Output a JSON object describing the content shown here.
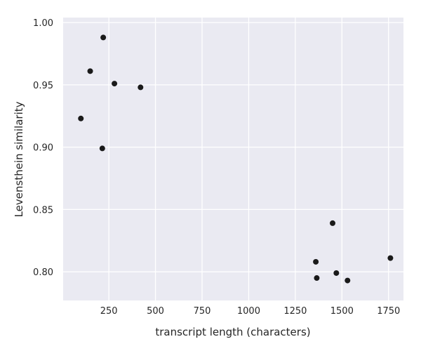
{
  "chart_data": {
    "type": "scatter",
    "title": "",
    "xlabel": "transcript length (characters)",
    "ylabel": "Levensthein similarity",
    "xlim": [
      5,
      1830
    ],
    "ylim": [
      0.777,
      1.004
    ],
    "xticks": [
      250,
      500,
      750,
      1000,
      1250,
      1500,
      1750
    ],
    "yticks": [
      0.8,
      0.85,
      0.9,
      0.95,
      1.0
    ],
    "ytick_labels": [
      "0.80",
      "0.85",
      "0.90",
      "0.95",
      "1.00"
    ],
    "grid": true,
    "legend": "none",
    "colors": {
      "background": "#eaeaf2",
      "grid": "#ffffff",
      "marker": "#1a1a1a"
    },
    "points": [
      {
        "x": 100,
        "y": 0.923
      },
      {
        "x": 150,
        "y": 0.961
      },
      {
        "x": 215,
        "y": 0.899
      },
      {
        "x": 220,
        "y": 0.988
      },
      {
        "x": 280,
        "y": 0.951
      },
      {
        "x": 420,
        "y": 0.948
      },
      {
        "x": 1360,
        "y": 0.808
      },
      {
        "x": 1365,
        "y": 0.795
      },
      {
        "x": 1450,
        "y": 0.839
      },
      {
        "x": 1470,
        "y": 0.799
      },
      {
        "x": 1530,
        "y": 0.793
      },
      {
        "x": 1760,
        "y": 0.811
      }
    ]
  }
}
